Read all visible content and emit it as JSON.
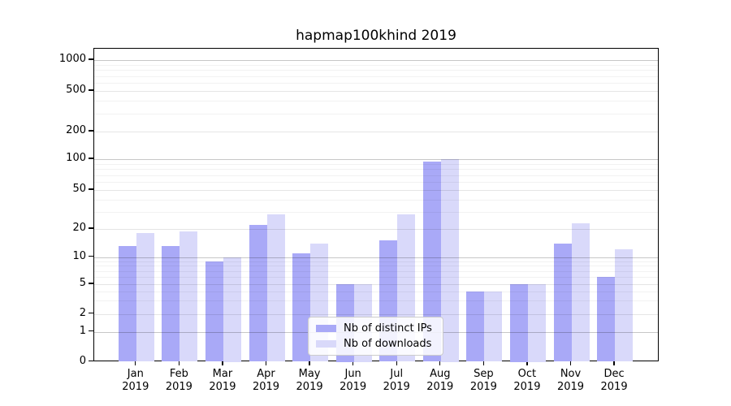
{
  "chart_data": {
    "type": "bar",
    "title": "hapmap100khind 2019",
    "categories": [
      "Jan",
      "Feb",
      "Mar",
      "Apr",
      "May",
      "Jun",
      "Jul",
      "Aug",
      "Sep",
      "Oct",
      "Nov",
      "Dec"
    ],
    "category_year": "2019",
    "series": [
      {
        "name": "Nb of distinct IPs",
        "color": "#a9a9f7",
        "values": [
          13,
          13,
          9,
          22,
          11,
          5,
          15,
          95,
          4,
          5,
          14,
          6
        ]
      },
      {
        "name": "Nb of downloads",
        "color": "#d9d9fa",
        "values": [
          18,
          19,
          10,
          28,
          14,
          5,
          28,
          100,
          4,
          5,
          23,
          12
        ]
      }
    ],
    "y_ticks": [
      0,
      1,
      2,
      5,
      10,
      20,
      50,
      100,
      200,
      500,
      1000
    ],
    "y_scale": "symlog",
    "ylim": [
      0,
      1000
    ],
    "grid": "horizontal",
    "legend_position": "lower-center-inside",
    "background_color": "#ffffff",
    "grid_major_values": [
      1,
      10,
      100,
      1000
    ]
  }
}
